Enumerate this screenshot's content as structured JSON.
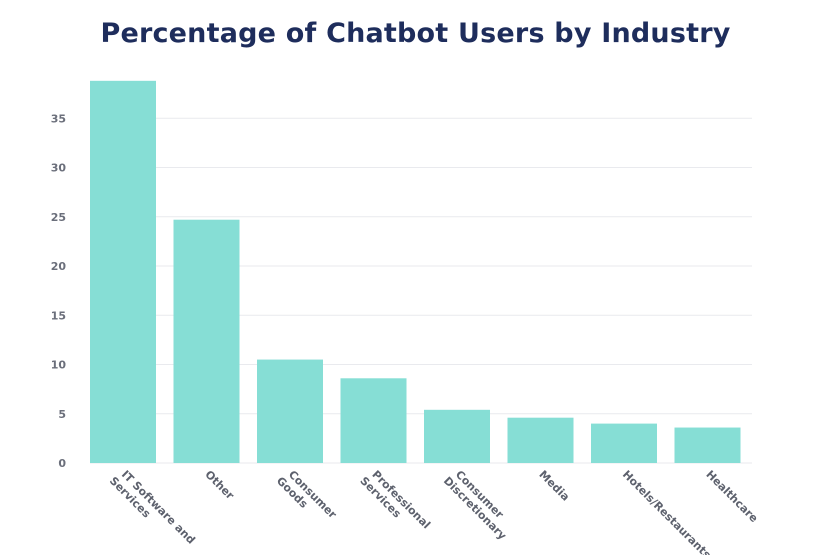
{
  "chart_data": {
    "type": "bar",
    "title": "Percentage of Chatbot Users by Industry",
    "xlabel": "",
    "ylabel": "",
    "categories": [
      [
        "IT Software and",
        "Services"
      ],
      [
        "Other"
      ],
      [
        "Consumer",
        "Goods"
      ],
      [
        "Professional",
        "Services"
      ],
      [
        "Consumer",
        "Discretionary"
      ],
      [
        "Media"
      ],
      [
        "Hotels/Restaurants"
      ],
      [
        "Healthcare"
      ]
    ],
    "values": [
      38.8,
      24.7,
      10.5,
      8.6,
      5.4,
      4.6,
      4.0,
      3.6
    ],
    "ylim": [
      0,
      40
    ],
    "yticks": [
      0,
      5,
      10,
      15,
      20,
      25,
      30,
      35
    ],
    "grid": true,
    "legend": "none",
    "colors": {
      "bar": "#86ded5",
      "grid": "#e9eaee",
      "title": "#1e2d5c"
    }
  }
}
